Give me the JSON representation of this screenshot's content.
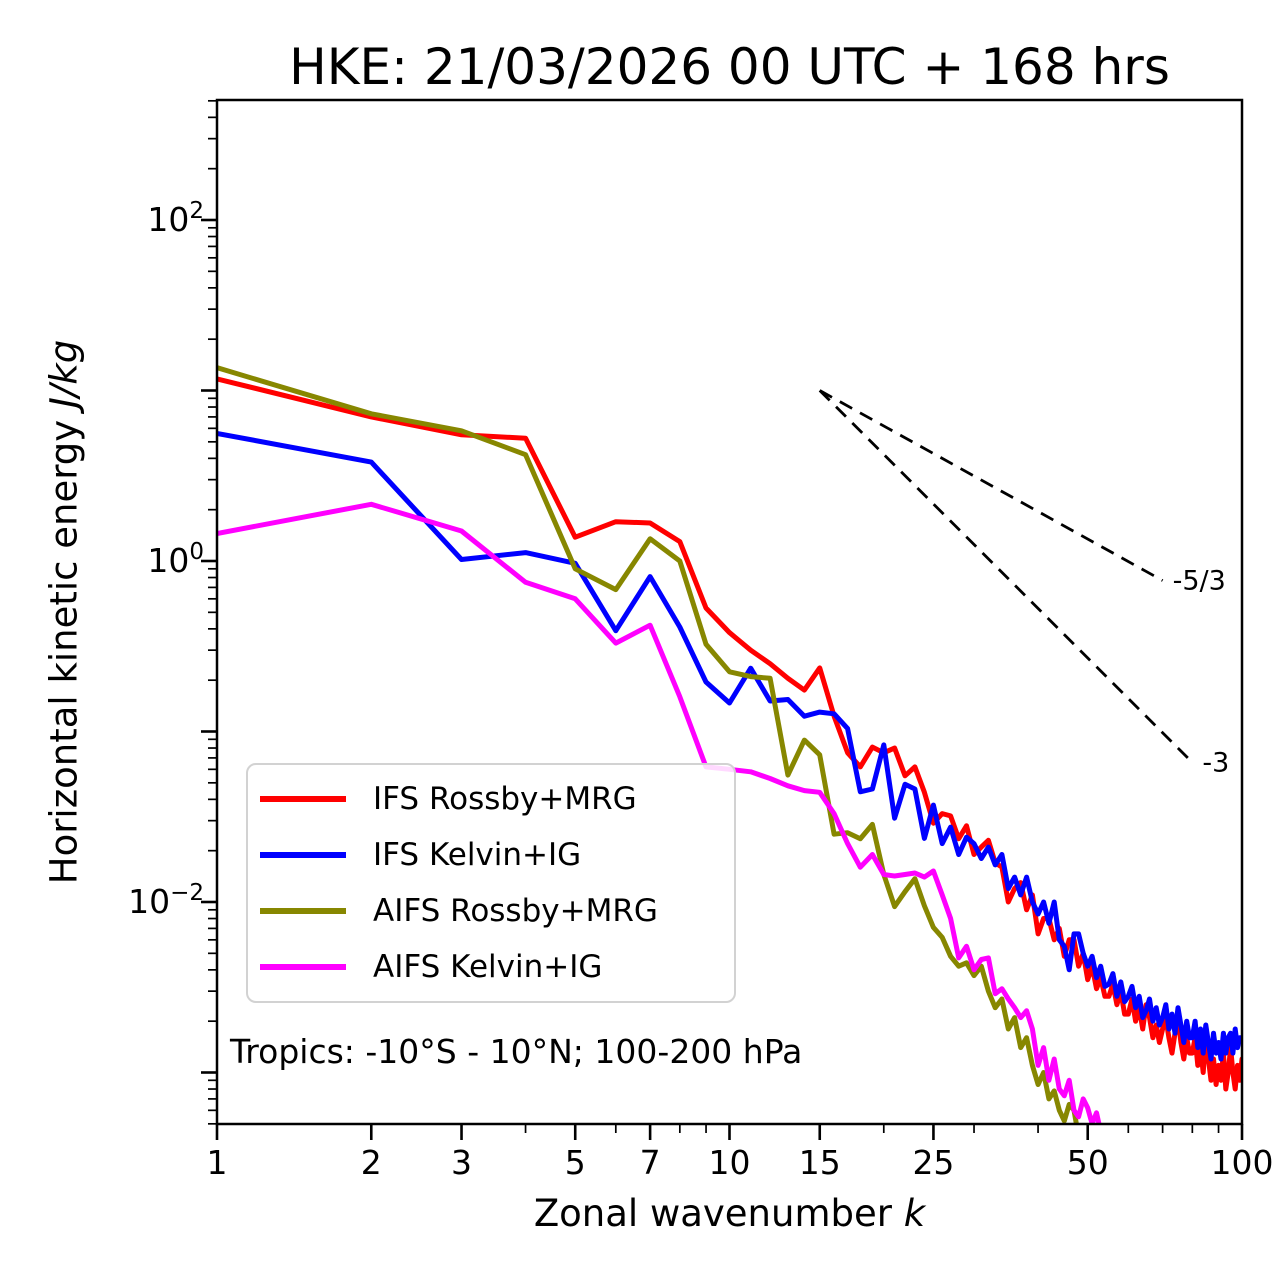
{
  "chart_data": {
    "type": "line",
    "title": "HKE: 21/03/2026 00 UTC + 168 hrs",
    "xlabel_text": "Zonal wavenumber ",
    "xlabel_math": "k",
    "ylabel_text": "Horizontal kinetic energy ",
    "ylabel_math": "J/kg",
    "annotation": "Tropics: -10°S - 10°N; 100-200 hPa",
    "x_scale": "log",
    "y_scale": "log",
    "xlim": [
      1,
      100
    ],
    "ylim": [
      0.0005,
      505
    ],
    "x_ticks": [
      1,
      2,
      3,
      5,
      7,
      10,
      15,
      25,
      50,
      100
    ],
    "x_minor_ticks": [
      4,
      6,
      8,
      9,
      20,
      30,
      40,
      60,
      70,
      80,
      90
    ],
    "y_major_exponents": [
      2,
      1,
      0,
      -1,
      -2,
      -3
    ],
    "y_labeled_exponents": [
      2,
      0,
      -2
    ],
    "legend_position": "lower left",
    "axis_color": "#000000",
    "series": [
      {
        "name": "IFS Rossby+MRG",
        "color": "#ff0000",
        "k_start": 1,
        "values": [
          11.7,
          7.0,
          5.5,
          5.25,
          1.38,
          1.7,
          1.67,
          1.3,
          0.53,
          0.38,
          0.3,
          0.25,
          0.205,
          0.175,
          0.236,
          0.123,
          0.075,
          0.062,
          0.081,
          0.075,
          0.08,
          0.055,
          0.062,
          0.044,
          0.029,
          0.033,
          0.032,
          0.0235,
          0.028,
          0.019,
          0.021,
          0.023,
          0.017,
          0.016,
          0.01,
          0.012,
          0.013,
          0.009,
          0.011,
          0.0065,
          0.008,
          0.008,
          0.006,
          0.007,
          0.0048,
          0.006,
          0.006,
          0.0042,
          0.005,
          0.0035,
          0.0042,
          0.0031,
          0.0036,
          0.0028,
          0.0028,
          0.0033,
          0.0025,
          0.003,
          0.0022,
          0.0022,
          0.0027,
          0.002,
          0.0024,
          0.0018,
          0.0025,
          0.0021,
          0.0016,
          0.0019,
          0.0015,
          0.0018,
          0.0021,
          0.0016,
          0.0013,
          0.0017,
          0.0021,
          0.0015,
          0.0012,
          0.0016,
          0.0013,
          0.0013,
          0.0016,
          0.0011,
          0.0014,
          0.001,
          0.0016,
          0.0012,
          0.0009,
          0.0012,
          0.00085,
          0.0011,
          0.0009,
          0.0013,
          0.0008,
          0.001,
          0.0014,
          0.001,
          0.0008,
          0.0011,
          0.0009,
          0.0012
        ]
      },
      {
        "name": "IFS Kelvin+IG",
        "color": "#0000ff",
        "k_start": 1,
        "values": [
          5.6,
          3.8,
          1.02,
          1.12,
          0.97,
          0.39,
          0.81,
          0.41,
          0.195,
          0.147,
          0.235,
          0.151,
          0.154,
          0.123,
          0.13,
          0.127,
          0.104,
          0.0443,
          0.046,
          0.0835,
          0.031,
          0.049,
          0.046,
          0.0236,
          0.037,
          0.022,
          0.0275,
          0.019,
          0.024,
          0.022,
          0.018,
          0.021,
          0.0165,
          0.019,
          0.012,
          0.014,
          0.011,
          0.014,
          0.01,
          0.0085,
          0.01,
          0.0075,
          0.01,
          0.006,
          0.0055,
          0.004,
          0.0065,
          0.0065,
          0.005,
          0.0042,
          0.0048,
          0.0036,
          0.0042,
          0.0032,
          0.0033,
          0.0038,
          0.0028,
          0.0034,
          0.0026,
          0.0028,
          0.0032,
          0.0024,
          0.0028,
          0.0021,
          0.0023,
          0.0027,
          0.002,
          0.0024,
          0.0019,
          0.0021,
          0.0025,
          0.0018,
          0.0022,
          0.0017,
          0.0024,
          0.0019,
          0.0015,
          0.002,
          0.0016,
          0.0016,
          0.002,
          0.0014,
          0.0018,
          0.0013,
          0.0019,
          0.0015,
          0.0012,
          0.0017,
          0.0013,
          0.0015,
          0.0012,
          0.0017,
          0.0013,
          0.0016,
          0.0017,
          0.0013,
          0.0018,
          0.0014,
          0.0016,
          0.0016
        ]
      },
      {
        "name": "AIFS Rossby+MRG",
        "color": "#878700",
        "k_start": 1,
        "values": [
          13.6,
          7.3,
          5.8,
          4.2,
          0.9,
          0.68,
          1.35,
          1.0,
          0.325,
          0.224,
          0.21,
          0.205,
          0.0555,
          0.089,
          0.073,
          0.025,
          0.0255,
          0.0235,
          0.0285,
          0.0145,
          0.0094,
          0.0115,
          0.0137,
          0.0095,
          0.0071,
          0.0062,
          0.0048,
          0.0042,
          0.0044,
          0.0037,
          0.0042,
          0.003,
          0.0024,
          0.0027,
          0.0018,
          0.0021,
          0.0014,
          0.0016,
          0.0011,
          0.00085,
          0.001,
          0.0007,
          0.00078,
          0.0006,
          0.00052,
          0.00065,
          0.0006,
          0.00042
        ]
      },
      {
        "name": "AIFS Kelvin+IG",
        "color": "#ff00ff",
        "k_start": 1,
        "values": [
          1.45,
          2.15,
          1.5,
          0.75,
          0.6,
          0.33,
          0.42,
          0.16,
          0.062,
          0.06,
          0.058,
          0.053,
          0.048,
          0.045,
          0.044,
          0.033,
          0.022,
          0.016,
          0.019,
          0.0145,
          0.0142,
          0.0145,
          0.0148,
          0.014,
          0.0152,
          0.011,
          0.008,
          0.0047,
          0.0055,
          0.004,
          0.0046,
          0.0047,
          0.0029,
          0.0031,
          0.0027,
          0.0024,
          0.0021,
          0.0023,
          0.0018,
          0.0011,
          0.0014,
          0.0009,
          0.0012,
          0.0008,
          0.00073,
          0.0009,
          0.0006,
          0.00055,
          0.0007,
          0.00062,
          0.0005,
          0.00058,
          0.00045,
          0.0004
        ]
      }
    ],
    "guides": [
      {
        "label": "-5/3",
        "k1": 15,
        "v1": 10,
        "k2": 70,
        "v2": 0.768
      },
      {
        "label": "-3",
        "k1": 15,
        "v1": 10,
        "k2": 80,
        "v2": 0.0659
      }
    ]
  }
}
